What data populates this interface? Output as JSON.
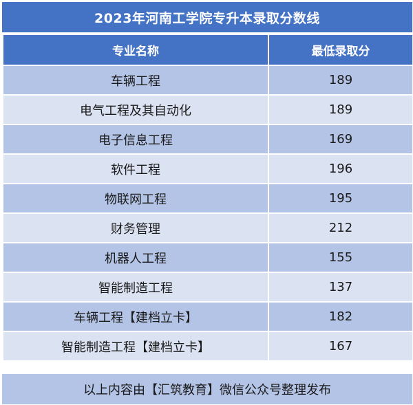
{
  "title": "2023年河南工学院专升本录取分数线",
  "headers": {
    "major": "专业名称",
    "min_score": "最低录取分"
  },
  "rows": [
    {
      "major": "车辆工程",
      "score": "189"
    },
    {
      "major": "电气工程及其自动化",
      "score": "189"
    },
    {
      "major": "电子信息工程",
      "score": "169"
    },
    {
      "major": "软件工程",
      "score": "196"
    },
    {
      "major": "物联网工程",
      "score": "195"
    },
    {
      "major": "财务管理",
      "score": "212"
    },
    {
      "major": "机器人工程",
      "score": "155"
    },
    {
      "major": "智能制造工程",
      "score": "137"
    },
    {
      "major": "车辆工程【建档立卡】",
      "score": "182"
    },
    {
      "major": "智能制造工程【建档立卡】",
      "score": "167"
    }
  ],
  "footer": "以上内容由【汇筑教育】微信公众号整理发布",
  "colors": {
    "header_blue": "#4472c4",
    "row_dark": "#b4c4e6",
    "row_light": "#dbe3f3"
  }
}
